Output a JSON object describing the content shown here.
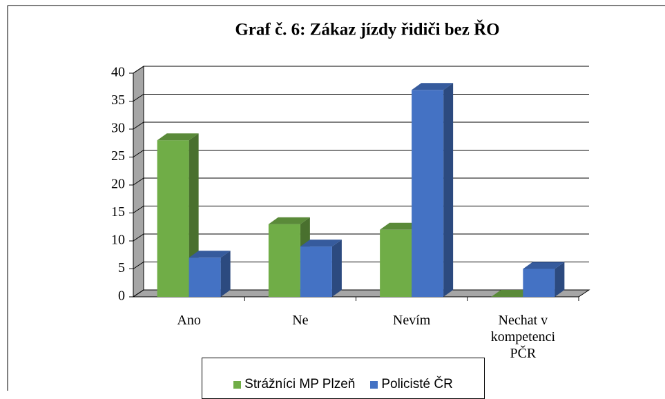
{
  "chart_data": {
    "type": "bar3d",
    "title": "Graf č. 6: Zákaz jízdy řidiči bez ŘO",
    "categories": [
      "Ano",
      "Ne",
      "Nevím",
      "Nechat v kompetenci PČR"
    ],
    "series": [
      {
        "name": "Strážníci MP Plzeň",
        "color": "#70ad47",
        "values": [
          28,
          13,
          12,
          0
        ]
      },
      {
        "name": "Policisté ČR",
        "color": "#4472c4",
        "values": [
          7,
          9,
          37,
          5
        ]
      }
    ],
    "ylim": [
      0,
      40
    ],
    "yticks": [
      0,
      5,
      10,
      15,
      20,
      25,
      30,
      35,
      40
    ],
    "grid": true,
    "legend": "bottom"
  }
}
